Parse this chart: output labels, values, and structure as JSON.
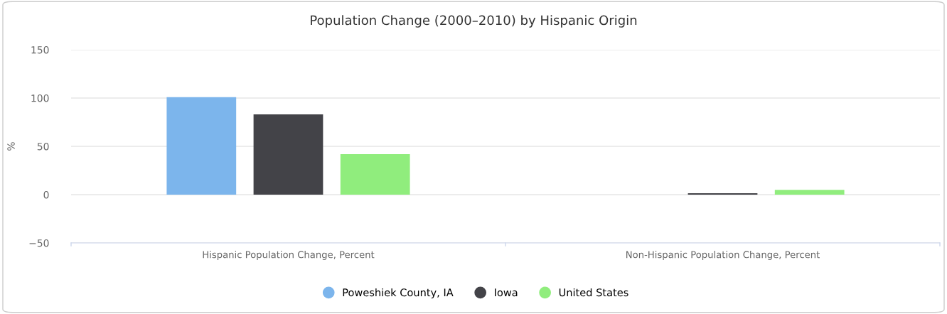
{
  "chart_data": {
    "type": "bar",
    "title": "Population Change (2000–2010) by Hispanic Origin",
    "ylabel": "%",
    "categories": [
      "Hispanic Population Change, Percent",
      "Non-Hispanic Population Change, Percent"
    ],
    "series": [
      {
        "name": "Poweshiek County, IA",
        "color": "#7cb5ec",
        "values": [
          101,
          0
        ]
      },
      {
        "name": "Iowa",
        "color": "#434348",
        "values": [
          83,
          1.4
        ]
      },
      {
        "name": "United States",
        "color": "#90ed7d",
        "values": [
          42,
          4.9
        ]
      }
    ],
    "ylim": [
      -50,
      150
    ],
    "yticks": [
      {
        "value": -50,
        "label": "−50"
      },
      0,
      50,
      100,
      150
    ],
    "grid": "y",
    "legend": "bottom"
  }
}
